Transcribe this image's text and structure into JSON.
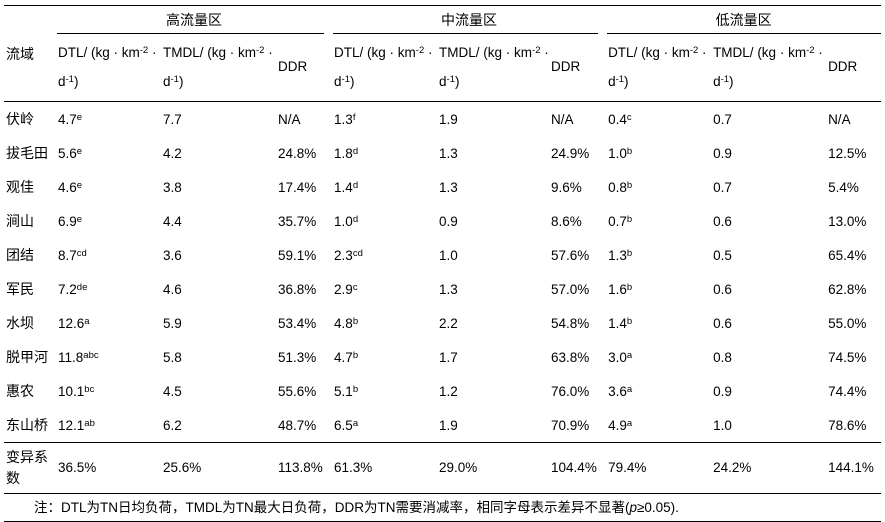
{
  "table": {
    "row_header": "流域",
    "groups": [
      {
        "label": "高流量区"
      },
      {
        "label": "中流量区"
      },
      {
        "label": "低流量区"
      }
    ],
    "sub_columns": [
      "DTL/ (kg · km^{-2} · d^{-1})",
      "TMDL/ (kg · km^{-2} · d^{-1})",
      "DDR"
    ],
    "rows": [
      {
        "name": "伏岭",
        "cells": [
          "4.7^{e}",
          "7.7",
          "N/A",
          "1.3^{f}",
          "1.9",
          "N/A",
          "0.4^{c}",
          "0.7",
          "N/A"
        ]
      },
      {
        "name": "拔毛田",
        "cells": [
          "5.6^{e}",
          "4.2",
          "24.8%",
          "1.8^{d}",
          "1.3",
          "24.9%",
          "1.0^{b}",
          "0.9",
          "12.5%"
        ]
      },
      {
        "name": "观佳",
        "cells": [
          "4.6^{e}",
          "3.8",
          "17.4%",
          "1.4^{d}",
          "1.3",
          "9.6%",
          "0.8^{b}",
          "0.7",
          "5.4%"
        ]
      },
      {
        "name": "涧山",
        "cells": [
          "6.9^{e}",
          "4.4",
          "35.7%",
          "1.0^{d}",
          "0.9",
          "8.6%",
          "0.7^{b}",
          "0.6",
          "13.0%"
        ]
      },
      {
        "name": "团结",
        "cells": [
          "8.7^{cd}",
          "3.6",
          "59.1%",
          "2.3^{cd}",
          "1.0",
          "57.6%",
          "1.3^{b}",
          "0.5",
          "65.4%"
        ]
      },
      {
        "name": "军民",
        "cells": [
          "7.2^{de}",
          "4.6",
          "36.8%",
          "2.9^{c}",
          "1.3",
          "57.0%",
          "1.6^{b}",
          "0.6",
          "62.8%"
        ]
      },
      {
        "name": "水坝",
        "cells": [
          "12.6^{a}",
          "5.9",
          "53.4%",
          "4.8^{b}",
          "2.2",
          "54.8%",
          "1.4^{b}",
          "0.6",
          "55.0%"
        ]
      },
      {
        "name": "脱甲河",
        "cells": [
          "11.8^{abc}",
          "5.8",
          "51.3%",
          "4.7^{b}",
          "1.7",
          "63.8%",
          "3.0^{a}",
          "0.8",
          "74.5%"
        ]
      },
      {
        "name": "惠农",
        "cells": [
          "10.1^{bc}",
          "4.5",
          "55.6%",
          "5.1^{b}",
          "1.2",
          "76.0%",
          "3.6^{a}",
          "0.9",
          "74.4%"
        ]
      },
      {
        "name": "东山桥",
        "cells": [
          "12.1^{ab}",
          "6.2",
          "48.7%",
          "6.5^{a}",
          "1.9",
          "70.9%",
          "4.9^{a}",
          "1.0",
          "78.6%"
        ]
      }
    ],
    "summary_row": {
      "name": "变异系数",
      "cells": [
        "36.5%",
        "25.6%",
        "113.8%",
        "61.3%",
        "29.0%",
        "104.4%",
        "79.4%",
        "24.2%",
        "144.1%"
      ]
    }
  },
  "footnote": "注：DTL为TN日均负荷，TMDL为TN最大日负荷，DDR为TN需要消减率，相同字母表示差异不显著(*p*≥0.05)."
}
